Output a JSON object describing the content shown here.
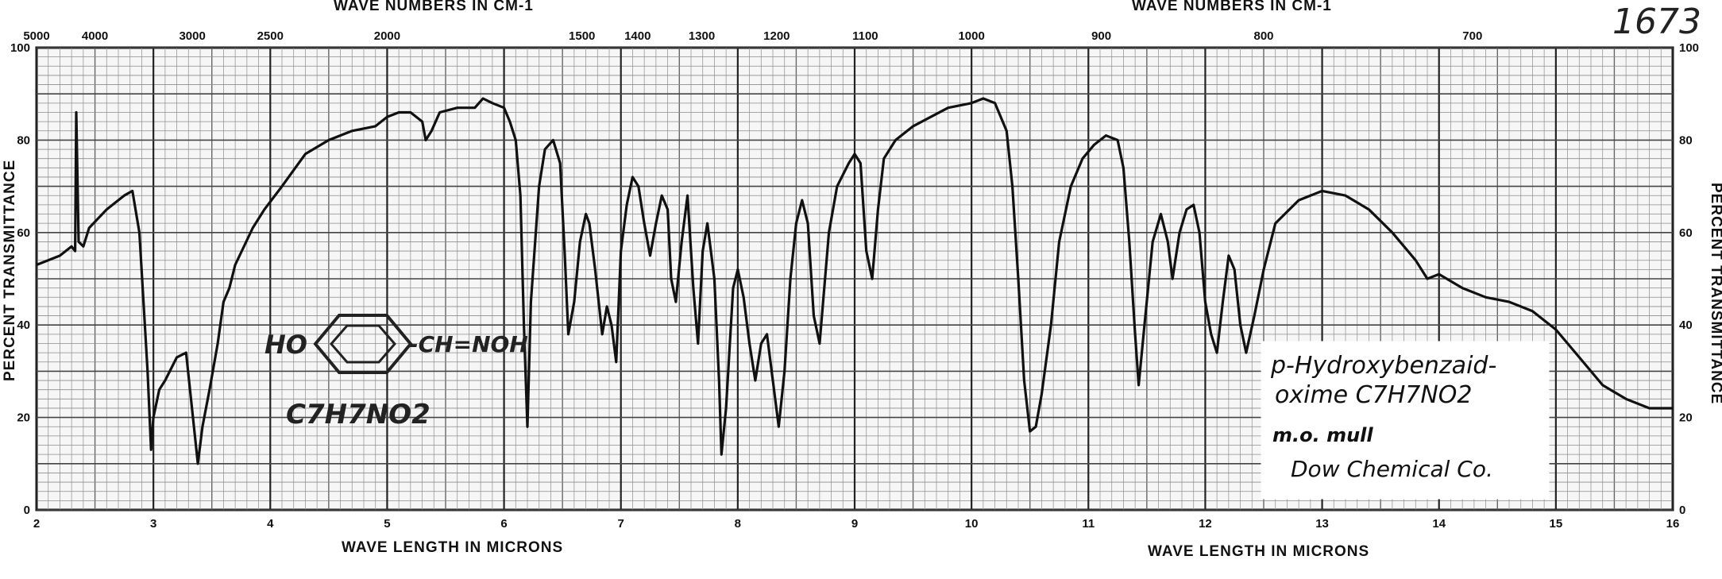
{
  "sheet_number": "1673",
  "structure": {
    "ho": "HO",
    "ch_noh": "-CH=NOH",
    "formula": "C7H7NO2"
  },
  "note_card": {
    "line1": "p-Hydroxybenzaid-",
    "line2": "oxime  C7H7NO2",
    "line3": "m.o. mull",
    "line4": "Dow Chemical Co."
  },
  "chart_data": {
    "type": "line",
    "title": "",
    "xlabel": "WAVE LENGTH IN MICRONS",
    "xlabel_right": "WAVE LENGTH IN MICRONS",
    "x2label": "WAVE NUMBERS IN CM-1",
    "x2label_right": "WAVE NUMBERS IN CM-1",
    "ylabel_left": "PERCENT TRANSMITTANCE",
    "ylabel_right": "PERCENT TRANSMITTANCE",
    "xlim": [
      2,
      16
    ],
    "ylim": [
      0,
      100
    ],
    "grid": true,
    "x_tick_labels": [
      "2",
      "3",
      "4",
      "5",
      "6",
      "7",
      "8",
      "9",
      "10",
      "11",
      "12",
      "13",
      "14",
      "15",
      "16"
    ],
    "y_tick_labels_left": [
      "0",
      "20",
      "40",
      "60",
      "80",
      "100"
    ],
    "y_tick_labels_right": [
      "0",
      "20",
      "40",
      "60",
      "80",
      "100"
    ],
    "top_tick_labels": [
      {
        "label": "5000",
        "x": 2.0
      },
      {
        "label": "4000",
        "x": 2.5
      },
      {
        "label": "3000",
        "x": 3.333
      },
      {
        "label": "2500",
        "x": 4.0
      },
      {
        "label": "2000",
        "x": 5.0
      },
      {
        "label": "1500",
        "x": 6.667
      },
      {
        "label": "1400",
        "x": 7.143
      },
      {
        "label": "1300",
        "x": 7.692
      },
      {
        "label": "1200",
        "x": 8.333
      },
      {
        "label": "1100",
        "x": 9.091
      },
      {
        "label": "1000",
        "x": 10.0
      },
      {
        "label": "900",
        "x": 11.111
      },
      {
        "label": "800",
        "x": 12.5
      },
      {
        "label": "700",
        "x": 14.286
      }
    ],
    "series": [
      {
        "color": "#111111",
        "points": [
          [
            2.0,
            53
          ],
          [
            2.2,
            55
          ],
          [
            2.3,
            57
          ],
          [
            2.33,
            56
          ],
          [
            2.34,
            86
          ],
          [
            2.36,
            58
          ],
          [
            2.4,
            57
          ],
          [
            2.45,
            61
          ],
          [
            2.6,
            65
          ],
          [
            2.75,
            68
          ],
          [
            2.82,
            69
          ],
          [
            2.88,
            60
          ],
          [
            2.95,
            30
          ],
          [
            2.98,
            13
          ],
          [
            3.0,
            20
          ],
          [
            3.05,
            26
          ],
          [
            3.1,
            28
          ],
          [
            3.2,
            33
          ],
          [
            3.28,
            34
          ],
          [
            3.33,
            22
          ],
          [
            3.38,
            10
          ],
          [
            3.42,
            18
          ],
          [
            3.48,
            26
          ],
          [
            3.55,
            36
          ],
          [
            3.6,
            45
          ],
          [
            3.65,
            48
          ],
          [
            3.7,
            53
          ],
          [
            3.85,
            61
          ],
          [
            3.95,
            65
          ],
          [
            4.1,
            70
          ],
          [
            4.3,
            77
          ],
          [
            4.5,
            80
          ],
          [
            4.7,
            82
          ],
          [
            4.9,
            83
          ],
          [
            5.0,
            85
          ],
          [
            5.1,
            86
          ],
          [
            5.2,
            86
          ],
          [
            5.3,
            84
          ],
          [
            5.33,
            80
          ],
          [
            5.38,
            82
          ],
          [
            5.45,
            86
          ],
          [
            5.6,
            87
          ],
          [
            5.75,
            87
          ],
          [
            5.82,
            89
          ],
          [
            5.9,
            88
          ],
          [
            6.0,
            87
          ],
          [
            6.05,
            84
          ],
          [
            6.1,
            80
          ],
          [
            6.14,
            68
          ],
          [
            6.17,
            40
          ],
          [
            6.2,
            18
          ],
          [
            6.23,
            45
          ],
          [
            6.3,
            70
          ],
          [
            6.35,
            78
          ],
          [
            6.42,
            80
          ],
          [
            6.48,
            75
          ],
          [
            6.52,
            55
          ],
          [
            6.55,
            38
          ],
          [
            6.6,
            45
          ],
          [
            6.65,
            58
          ],
          [
            6.7,
            64
          ],
          [
            6.73,
            62
          ],
          [
            6.78,
            52
          ],
          [
            6.84,
            38
          ],
          [
            6.88,
            44
          ],
          [
            6.92,
            40
          ],
          [
            6.96,
            32
          ],
          [
            7.0,
            56
          ],
          [
            7.05,
            66
          ],
          [
            7.1,
            72
          ],
          [
            7.15,
            70
          ],
          [
            7.2,
            62
          ],
          [
            7.25,
            55
          ],
          [
            7.3,
            62
          ],
          [
            7.35,
            68
          ],
          [
            7.4,
            65
          ],
          [
            7.43,
            50
          ],
          [
            7.47,
            45
          ],
          [
            7.52,
            58
          ],
          [
            7.57,
            68
          ],
          [
            7.62,
            48
          ],
          [
            7.66,
            36
          ],
          [
            7.7,
            56
          ],
          [
            7.74,
            62
          ],
          [
            7.8,
            50
          ],
          [
            7.84,
            28
          ],
          [
            7.86,
            12
          ],
          [
            7.9,
            22
          ],
          [
            7.96,
            48
          ],
          [
            8.0,
            52
          ],
          [
            8.05,
            46
          ],
          [
            8.1,
            36
          ],
          [
            8.15,
            28
          ],
          [
            8.2,
            36
          ],
          [
            8.25,
            38
          ],
          [
            8.3,
            28
          ],
          [
            8.35,
            18
          ],
          [
            8.4,
            30
          ],
          [
            8.45,
            50
          ],
          [
            8.5,
            62
          ],
          [
            8.55,
            67
          ],
          [
            8.6,
            62
          ],
          [
            8.65,
            42
          ],
          [
            8.7,
            36
          ],
          [
            8.78,
            60
          ],
          [
            8.85,
            70
          ],
          [
            8.95,
            75
          ],
          [
            9.0,
            77
          ],
          [
            9.05,
            75
          ],
          [
            9.1,
            56
          ],
          [
            9.15,
            50
          ],
          [
            9.2,
            65
          ],
          [
            9.25,
            76
          ],
          [
            9.35,
            80
          ],
          [
            9.5,
            83
          ],
          [
            9.65,
            85
          ],
          [
            9.8,
            87
          ],
          [
            10.0,
            88
          ],
          [
            10.1,
            89
          ],
          [
            10.2,
            88
          ],
          [
            10.3,
            82
          ],
          [
            10.35,
            70
          ],
          [
            10.4,
            50
          ],
          [
            10.45,
            28
          ],
          [
            10.5,
            17
          ],
          [
            10.55,
            18
          ],
          [
            10.6,
            25
          ],
          [
            10.68,
            40
          ],
          [
            10.75,
            58
          ],
          [
            10.85,
            70
          ],
          [
            10.95,
            76
          ],
          [
            11.05,
            79
          ],
          [
            11.15,
            81
          ],
          [
            11.25,
            80
          ],
          [
            11.3,
            74
          ],
          [
            11.35,
            58
          ],
          [
            11.4,
            38
          ],
          [
            11.43,
            27
          ],
          [
            11.48,
            40
          ],
          [
            11.55,
            58
          ],
          [
            11.62,
            64
          ],
          [
            11.68,
            58
          ],
          [
            11.72,
            50
          ],
          [
            11.78,
            60
          ],
          [
            11.84,
            65
          ],
          [
            11.9,
            66
          ],
          [
            11.95,
            60
          ],
          [
            12.0,
            45
          ],
          [
            12.05,
            38
          ],
          [
            12.1,
            34
          ],
          [
            12.15,
            45
          ],
          [
            12.2,
            55
          ],
          [
            12.25,
            52
          ],
          [
            12.3,
            40
          ],
          [
            12.35,
            34
          ],
          [
            12.42,
            42
          ],
          [
            12.5,
            52
          ],
          [
            12.6,
            62
          ],
          [
            12.8,
            67
          ],
          [
            13.0,
            69
          ],
          [
            13.2,
            68
          ],
          [
            13.4,
            65
          ],
          [
            13.6,
            60
          ],
          [
            13.8,
            54
          ],
          [
            13.9,
            50
          ],
          [
            14.0,
            51
          ],
          [
            14.2,
            48
          ],
          [
            14.4,
            46
          ],
          [
            14.6,
            45
          ],
          [
            14.8,
            43
          ],
          [
            15.0,
            39
          ],
          [
            15.2,
            33
          ],
          [
            15.4,
            27
          ],
          [
            15.6,
            24
          ],
          [
            15.8,
            22
          ],
          [
            16.0,
            22
          ]
        ]
      }
    ]
  }
}
